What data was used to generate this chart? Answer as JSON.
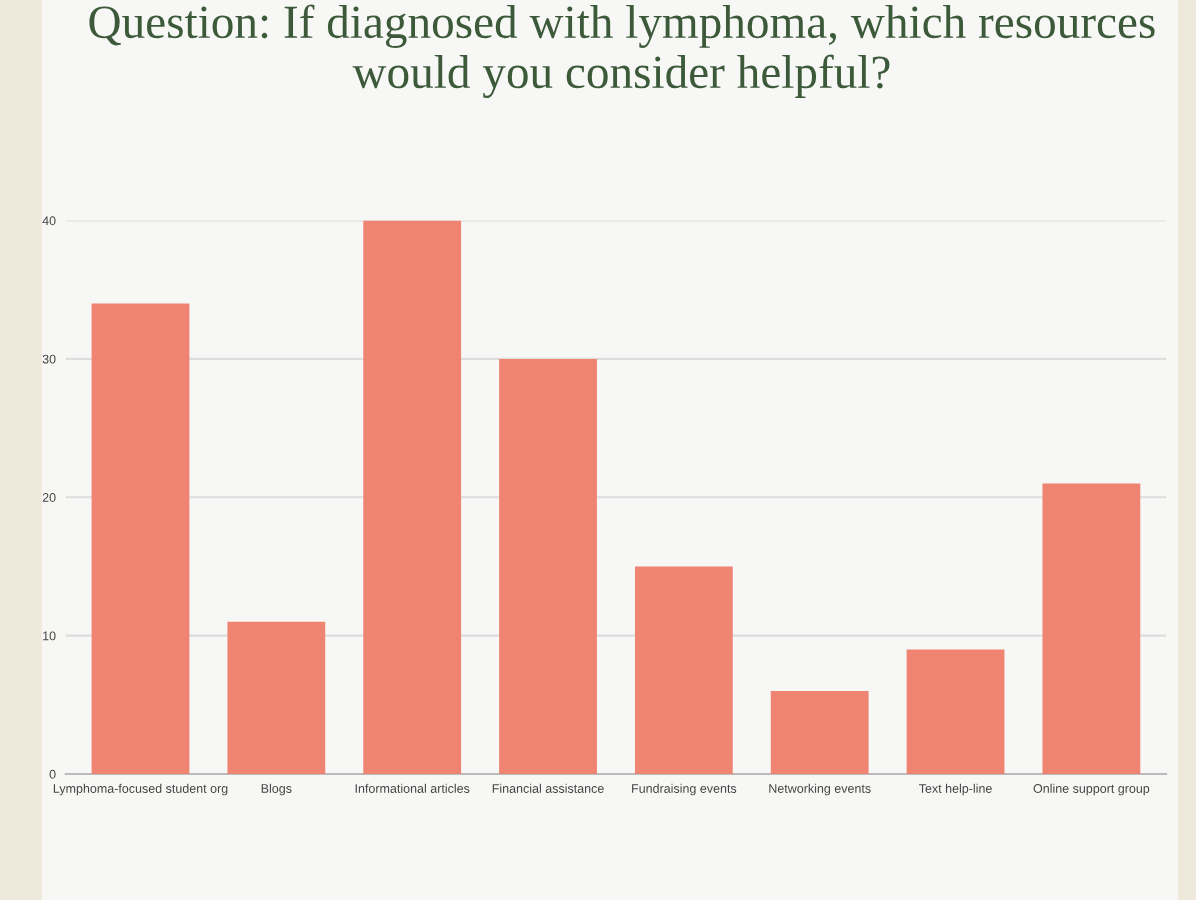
{
  "chart_data": {
    "type": "bar",
    "title": "Question: If diagnosed with lymphoma, which resources would you consider helpful?",
    "categories": [
      "Lymphoma-focused student org",
      "Blogs",
      "Informational articles",
      "Financial assistance",
      "Fundraising events",
      "Networking events",
      "Text help-line",
      "Online support group"
    ],
    "values": [
      34,
      11,
      40,
      30,
      15,
      6,
      9,
      21
    ],
    "color": "#ef8473",
    "ylim": [
      0,
      40
    ],
    "yticks": [
      0,
      10,
      20,
      30,
      40
    ],
    "grid": "y"
  }
}
